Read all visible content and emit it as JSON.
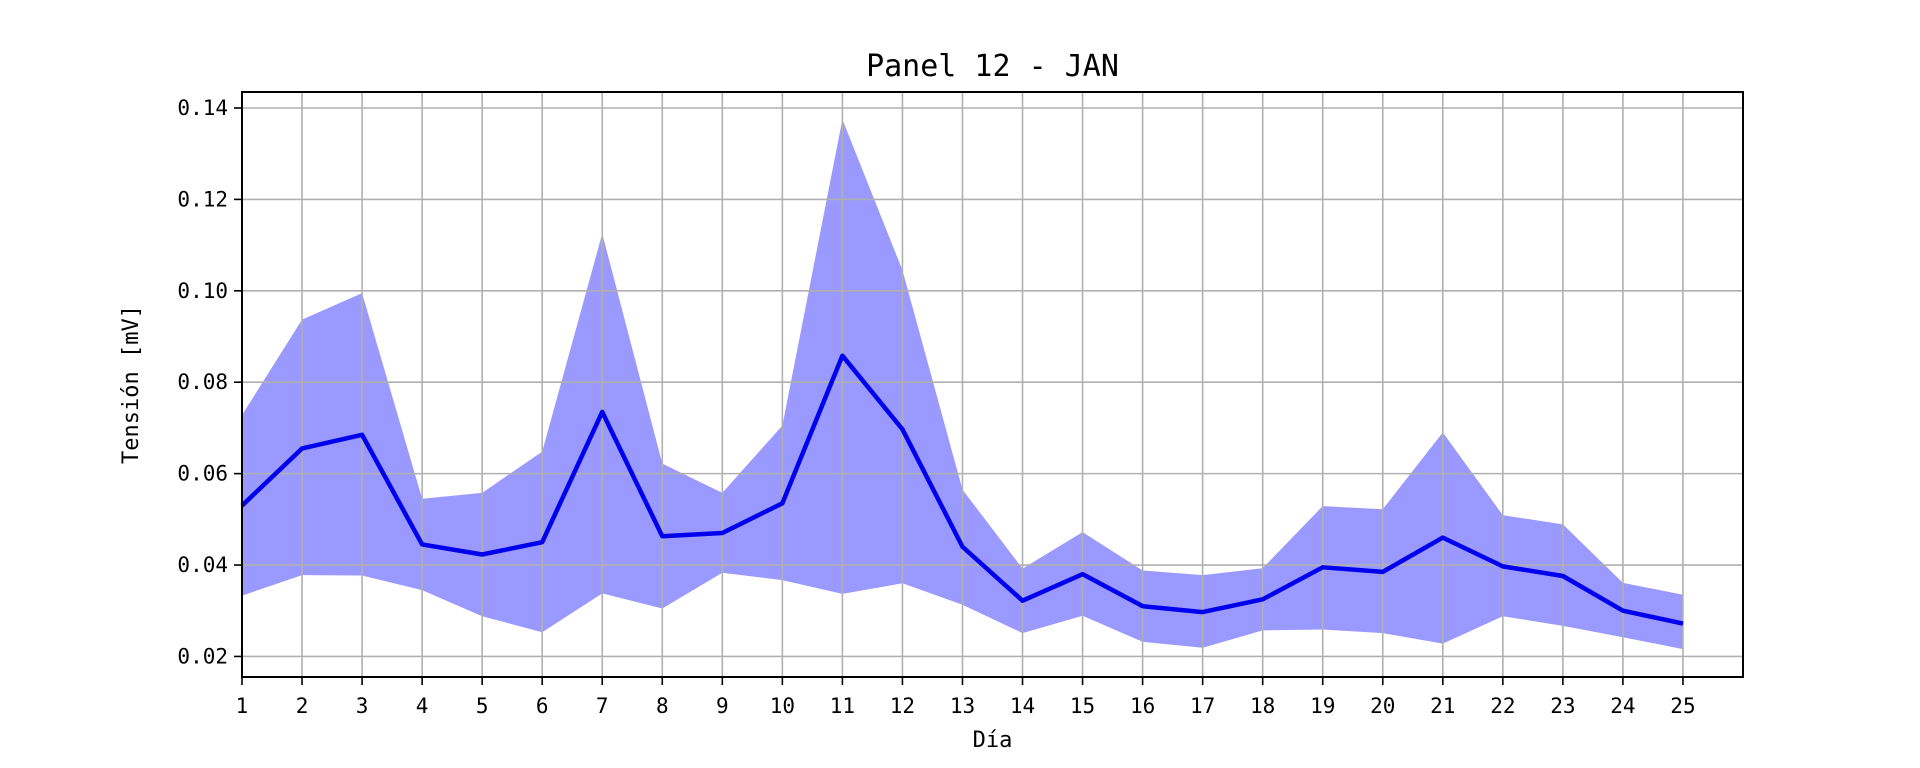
{
  "chart_data": {
    "type": "line",
    "title": "Panel 12 - JAN",
    "xlabel": "Día",
    "ylabel": "Tensión [mV]",
    "x": [
      1,
      2,
      3,
      4,
      5,
      6,
      7,
      8,
      9,
      10,
      11,
      12,
      13,
      14,
      15,
      16,
      17,
      18,
      19,
      20,
      21,
      22,
      23,
      24,
      25
    ],
    "xlim": [
      1,
      26
    ],
    "ylim": [
      0.0155,
      0.1435
    ],
    "yticks": [
      0.02,
      0.04,
      0.06,
      0.08,
      0.1,
      0.12,
      0.14
    ],
    "ytick_labels": [
      "0.02",
      "0.04",
      "0.06",
      "0.08",
      "0.10",
      "0.12",
      "0.14"
    ],
    "grid": true,
    "series": [
      {
        "values": [
          0.053,
          0.0655,
          0.0685,
          0.0445,
          0.0423,
          0.045,
          0.0735,
          0.0463,
          0.047,
          0.0535,
          0.0858,
          0.0697,
          0.044,
          0.0322,
          0.038,
          0.031,
          0.0297,
          0.0325,
          0.0395,
          0.0385,
          0.046,
          0.0397,
          0.0376,
          0.03,
          0.0272
        ],
        "color": "#0000ee"
      }
    ],
    "band": {
      "upper": [
        0.0728,
        0.0937,
        0.0995,
        0.0545,
        0.0558,
        0.0648,
        0.1125,
        0.0622,
        0.0558,
        0.0705,
        0.1375,
        0.1045,
        0.0565,
        0.0392,
        0.0472,
        0.0388,
        0.0378,
        0.0393,
        0.0529,
        0.0522,
        0.069,
        0.0509,
        0.0489,
        0.0361,
        0.0335
      ],
      "lower": [
        0.0333,
        0.0378,
        0.0377,
        0.0345,
        0.0288,
        0.0253,
        0.0338,
        0.0305,
        0.0383,
        0.0367,
        0.0337,
        0.036,
        0.0313,
        0.0251,
        0.0289,
        0.0232,
        0.0219,
        0.0257,
        0.0259,
        0.0251,
        0.0228,
        0.0288,
        0.0267,
        0.0242,
        0.0216
      ],
      "color": "#9999ff"
    }
  }
}
